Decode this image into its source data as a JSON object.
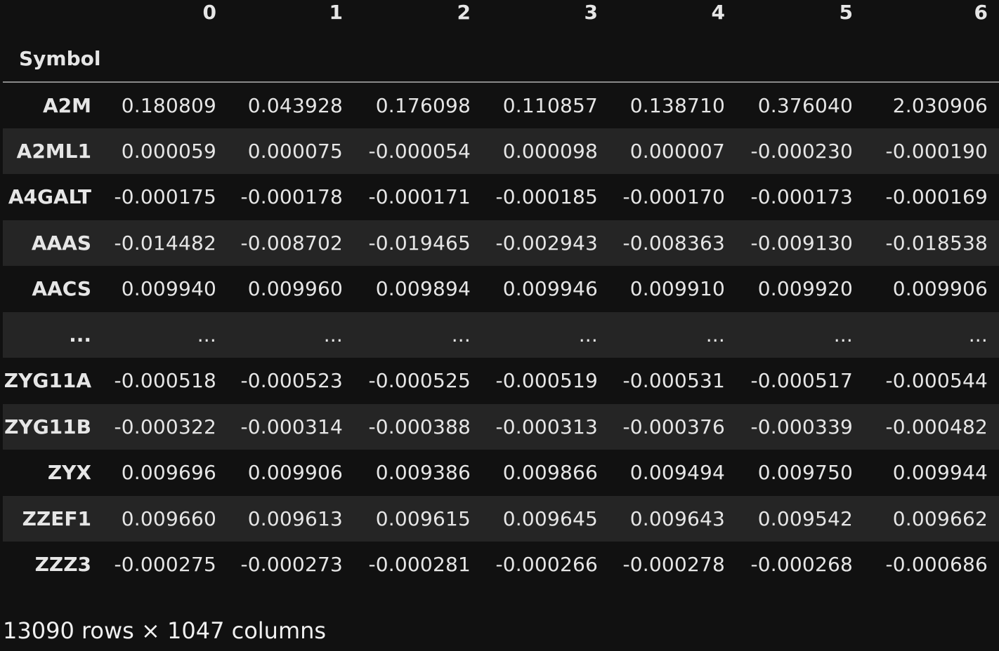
{
  "table": {
    "index_name": "Symbol",
    "columns": [
      "0",
      "1",
      "2",
      "3",
      "4",
      "5",
      "6"
    ],
    "rows": [
      {
        "label": "A2M",
        "values": [
          "0.180809",
          "0.043928",
          "0.176098",
          "0.110857",
          "0.138710",
          "0.376040",
          "2.030906"
        ]
      },
      {
        "label": "A2ML1",
        "values": [
          "0.000059",
          "0.000075",
          "-0.000054",
          "0.000098",
          "0.000007",
          "-0.000230",
          "-0.000190"
        ]
      },
      {
        "label": "A4GALT",
        "values": [
          "-0.000175",
          "-0.000178",
          "-0.000171",
          "-0.000185",
          "-0.000170",
          "-0.000173",
          "-0.000169"
        ]
      },
      {
        "label": "AAAS",
        "values": [
          "-0.014482",
          "-0.008702",
          "-0.019465",
          "-0.002943",
          "-0.008363",
          "-0.009130",
          "-0.018538"
        ]
      },
      {
        "label": "AACS",
        "values": [
          "0.009940",
          "0.009960",
          "0.009894",
          "0.009946",
          "0.009910",
          "0.009920",
          "0.009906"
        ]
      },
      {
        "label": "...",
        "values": [
          "...",
          "...",
          "...",
          "...",
          "...",
          "...",
          "..."
        ]
      },
      {
        "label": "ZYG11A",
        "values": [
          "-0.000518",
          "-0.000523",
          "-0.000525",
          "-0.000519",
          "-0.000531",
          "-0.000517",
          "-0.000544"
        ]
      },
      {
        "label": "ZYG11B",
        "values": [
          "-0.000322",
          "-0.000314",
          "-0.000388",
          "-0.000313",
          "-0.000376",
          "-0.000339",
          "-0.000482"
        ]
      },
      {
        "label": "ZYX",
        "values": [
          "0.009696",
          "0.009906",
          "0.009386",
          "0.009866",
          "0.009494",
          "0.009750",
          "0.009944"
        ]
      },
      {
        "label": "ZZEF1",
        "values": [
          "0.009660",
          "0.009613",
          "0.009615",
          "0.009645",
          "0.009643",
          "0.009542",
          "0.009662"
        ]
      },
      {
        "label": "ZZZ3",
        "values": [
          "-0.000275",
          "-0.000273",
          "-0.000281",
          "-0.000266",
          "-0.000278",
          "-0.000268",
          "-0.000686"
        ]
      }
    ]
  },
  "footer": {
    "shape_text": "13090 rows × 1047 columns"
  }
}
